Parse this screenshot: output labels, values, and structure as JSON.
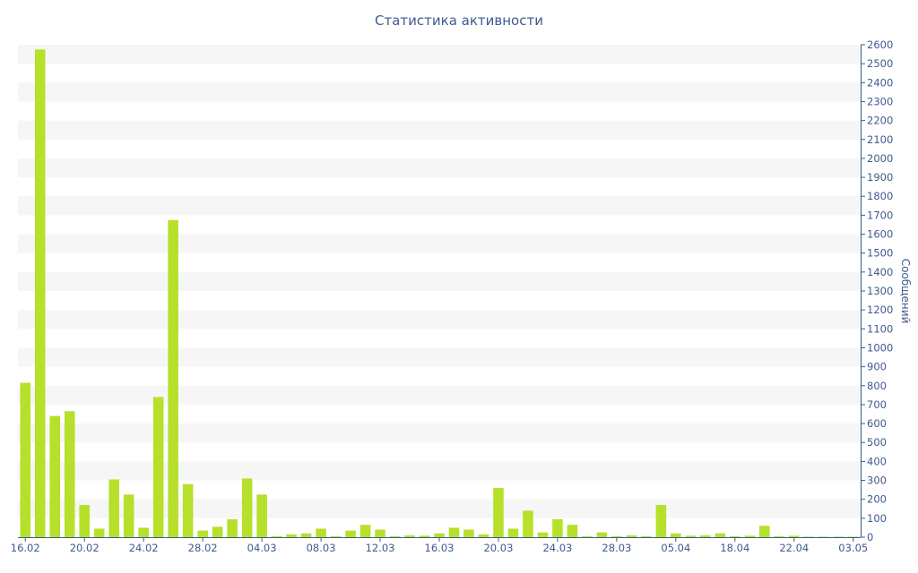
{
  "chart_data": {
    "type": "bar",
    "title": "Статистика активности",
    "xlabel": "",
    "ylabel": "Сообщений",
    "ylim": [
      0,
      2600
    ],
    "y_ticks": [
      0,
      100,
      200,
      300,
      400,
      500,
      600,
      700,
      800,
      900,
      1000,
      1100,
      1200,
      1300,
      1400,
      1500,
      1600,
      1700,
      1800,
      1900,
      2000,
      2100,
      2200,
      2300,
      2400,
      2500,
      2600
    ],
    "y_axis_position": "right",
    "grid": "alternating horizontal bands",
    "x_tick_labels": [
      {
        "label": "16.02",
        "index": 0
      },
      {
        "label": "20.02",
        "index": 4
      },
      {
        "label": "24.02",
        "index": 8
      },
      {
        "label": "28.02",
        "index": 12
      },
      {
        "label": "04.03",
        "index": 16
      },
      {
        "label": "08.03",
        "index": 20
      },
      {
        "label": "12.03",
        "index": 24
      },
      {
        "label": "16.03",
        "index": 28
      },
      {
        "label": "20.03",
        "index": 32
      },
      {
        "label": "24.03",
        "index": 36
      },
      {
        "label": "28.03",
        "index": 40
      },
      {
        "label": "05.04",
        "index": 44
      },
      {
        "label": "18.04",
        "index": 48
      },
      {
        "label": "22.04",
        "index": 52
      },
      {
        "label": "03.05",
        "index": 56
      }
    ],
    "values": [
      815,
      2575,
      640,
      665,
      170,
      45,
      305,
      225,
      50,
      740,
      1675,
      280,
      35,
      55,
      95,
      310,
      225,
      5,
      15,
      20,
      45,
      5,
      35,
      65,
      40,
      5,
      10,
      8,
      20,
      50,
      40,
      15,
      260,
      45,
      140,
      25,
      95,
      65,
      5,
      25,
      5,
      10,
      5,
      170,
      20,
      8,
      10,
      20,
      5,
      8,
      60,
      5,
      8,
      3,
      3,
      3,
      3
    ],
    "bar_color": "#b6e02a",
    "band_color": "#f6f6f6",
    "axis_color": "#3e5a8c"
  }
}
